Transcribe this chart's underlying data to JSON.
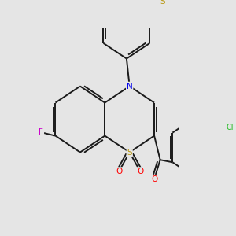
{
  "bg_color": "#e5e5e5",
  "bond_color": "#1a1a1a",
  "bond_width": 1.4,
  "dbo": 0.012,
  "atom_colors": {
    "S_ring": "#b8960c",
    "S_mts": "#b8960c",
    "N": "#0000ee",
    "F": "#cc00cc",
    "Cl": "#22bb22",
    "O": "#ff0000"
  },
  "fs": 7.5
}
